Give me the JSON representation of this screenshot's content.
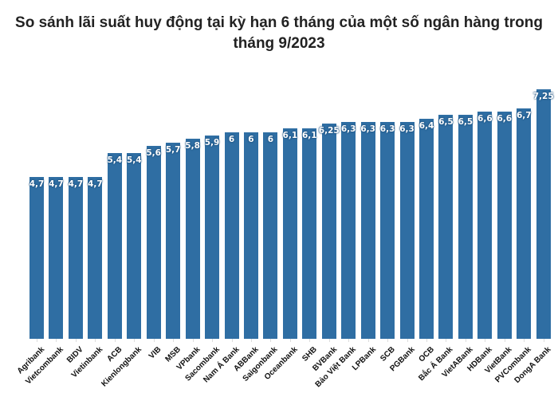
{
  "chart_data": {
    "type": "bar",
    "title": "So sánh lãi suất huy động tại kỳ hạn 6 tháng của một số ngân hàng trong tháng 9/2023",
    "xlabel": "",
    "ylabel": "",
    "ylim": [
      0,
      7.5
    ],
    "grid": false,
    "legend": null,
    "bar_color": "#2f6ea3",
    "categories": [
      "Agribank",
      "Vietcombank",
      "BIDV",
      "Vietinbank",
      "ACB",
      "Kienlongbank",
      "VIB",
      "MSB",
      "VPbank",
      "Sacombank",
      "Nam Á Bank",
      "ABBank",
      "Saigonbank",
      "Oceanbank",
      "SHB",
      "BVBank",
      "Bảo Việt Bank",
      "LPBank",
      "SCB",
      "PGBank",
      "OCB",
      "Bắc Á Bank",
      "VietABank",
      "HDBank",
      "VietBank",
      "PVCombank",
      "DongA Bank"
    ],
    "values": [
      4.7,
      4.7,
      4.7,
      4.7,
      5.4,
      5.4,
      5.6,
      5.7,
      5.8,
      5.9,
      6,
      6,
      6,
      6.1,
      6.1,
      6.25,
      6.3,
      6.3,
      6.3,
      6.3,
      6.4,
      6.5,
      6.5,
      6.6,
      6.6,
      6.7,
      7.25
    ],
    "value_labels": [
      "4,7",
      "4,7",
      "4,7",
      "4,7",
      "5,4",
      "5,4",
      "5,6",
      "5,7",
      "5,8",
      "5,9",
      "6",
      "6",
      "6",
      "6,1",
      "6,1",
      "6,25",
      "6,3",
      "6,3",
      "6,3",
      "6,3",
      "6,4",
      "6,5",
      "6,5",
      "6,6",
      "6,6",
      "6,7",
      "7,25"
    ]
  }
}
